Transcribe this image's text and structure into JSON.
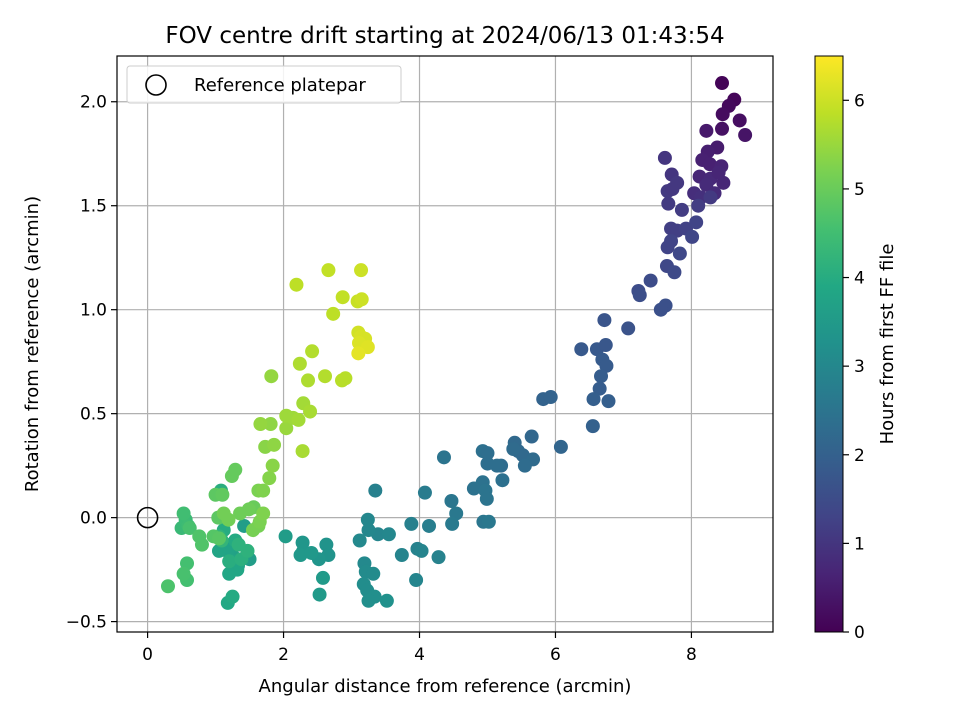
{
  "chart_data": {
    "type": "scatter",
    "title": "FOV centre drift starting at 2024/06/13 01:43:54",
    "xlabel": "Angular distance from reference (arcmin)",
    "ylabel": "Rotation from reference (arcmin)",
    "xlim": [
      -0.45,
      9.2
    ],
    "ylim": [
      -0.55,
      2.22
    ],
    "xticks": [
      0,
      2,
      4,
      6,
      8
    ],
    "xtick_labels": [
      "0",
      "2",
      "4",
      "6",
      "8"
    ],
    "yticks": [
      -0.5,
      0.0,
      0.5,
      1.0,
      1.5,
      2.0
    ],
    "ytick_labels": [
      "−0.5",
      "0.0",
      "0.5",
      "1.0",
      "1.5",
      "2.0"
    ],
    "grid": true,
    "legend": {
      "position": "top-left",
      "entries": [
        "Reference platepar"
      ]
    },
    "reference_point": {
      "x": 0,
      "y": 0,
      "label": "Reference platepar"
    },
    "colorbar": {
      "label": "Hours from first FF file",
      "colormap": "viridis",
      "range": [
        0,
        6.5
      ],
      "ticks": [
        0,
        1,
        2,
        3,
        4,
        5,
        6
      ],
      "tick_labels": [
        "0",
        "1",
        "2",
        "3",
        "4",
        "5",
        "6"
      ]
    },
    "points": [
      {
        "x": 8.45,
        "y": 2.09,
        "h": 0.05
      },
      {
        "x": 8.63,
        "y": 2.01,
        "h": 0.1
      },
      {
        "x": 8.55,
        "y": 1.98,
        "h": 0.15
      },
      {
        "x": 8.46,
        "y": 1.94,
        "h": 0.2
      },
      {
        "x": 8.71,
        "y": 1.91,
        "h": 0.25
      },
      {
        "x": 8.45,
        "y": 1.87,
        "h": 0.3
      },
      {
        "x": 8.79,
        "y": 1.84,
        "h": 0.35
      },
      {
        "x": 8.22,
        "y": 1.86,
        "h": 0.45
      },
      {
        "x": 8.38,
        "y": 1.78,
        "h": 0.5
      },
      {
        "x": 8.24,
        "y": 1.76,
        "h": 0.55
      },
      {
        "x": 8.16,
        "y": 1.72,
        "h": 0.6
      },
      {
        "x": 8.27,
        "y": 1.7,
        "h": 0.6
      },
      {
        "x": 8.44,
        "y": 1.69,
        "h": 0.65
      },
      {
        "x": 8.12,
        "y": 1.64,
        "h": 0.7
      },
      {
        "x": 8.28,
        "y": 1.63,
        "h": 0.75
      },
      {
        "x": 8.47,
        "y": 1.61,
        "h": 0.7
      },
      {
        "x": 8.22,
        "y": 1.6,
        "h": 0.8
      },
      {
        "x": 8.04,
        "y": 1.56,
        "h": 0.85
      },
      {
        "x": 8.14,
        "y": 1.54,
        "h": 0.9
      },
      {
        "x": 8.34,
        "y": 1.56,
        "h": 0.8
      },
      {
        "x": 8.4,
        "y": 1.66,
        "h": 0.7
      },
      {
        "x": 7.61,
        "y": 1.73,
        "h": 1.0
      },
      {
        "x": 7.71,
        "y": 1.65,
        "h": 1.0
      },
      {
        "x": 7.79,
        "y": 1.61,
        "h": 1.05
      },
      {
        "x": 7.65,
        "y": 1.57,
        "h": 1.1
      },
      {
        "x": 7.72,
        "y": 1.58,
        "h": 1.05
      },
      {
        "x": 7.66,
        "y": 1.51,
        "h": 1.1
      },
      {
        "x": 7.86,
        "y": 1.48,
        "h": 1.15
      },
      {
        "x": 8.1,
        "y": 1.5,
        "h": 1.15
      },
      {
        "x": 8.28,
        "y": 1.54,
        "h": 1.1
      },
      {
        "x": 7.7,
        "y": 1.39,
        "h": 1.2
      },
      {
        "x": 7.79,
        "y": 1.38,
        "h": 1.2
      },
      {
        "x": 7.92,
        "y": 1.39,
        "h": 1.25
      },
      {
        "x": 8.07,
        "y": 1.42,
        "h": 1.3
      },
      {
        "x": 7.65,
        "y": 1.3,
        "h": 1.3
      },
      {
        "x": 7.7,
        "y": 1.33,
        "h": 1.3
      },
      {
        "x": 8.01,
        "y": 1.35,
        "h": 1.35
      },
      {
        "x": 7.83,
        "y": 1.27,
        "h": 1.4
      },
      {
        "x": 7.64,
        "y": 1.21,
        "h": 1.4
      },
      {
        "x": 7.75,
        "y": 1.18,
        "h": 1.45
      },
      {
        "x": 7.4,
        "y": 1.14,
        "h": 1.5
      },
      {
        "x": 7.22,
        "y": 1.09,
        "h": 1.5
      },
      {
        "x": 7.24,
        "y": 1.07,
        "h": 1.55
      },
      {
        "x": 7.62,
        "y": 1.02,
        "h": 1.6
      },
      {
        "x": 7.55,
        "y": 1.0,
        "h": 1.6
      },
      {
        "x": 7.07,
        "y": 0.91,
        "h": 1.65
      },
      {
        "x": 6.72,
        "y": 0.95,
        "h": 1.7
      },
      {
        "x": 6.38,
        "y": 0.81,
        "h": 1.8
      },
      {
        "x": 6.61,
        "y": 0.81,
        "h": 1.8
      },
      {
        "x": 6.74,
        "y": 0.83,
        "h": 1.75
      },
      {
        "x": 6.69,
        "y": 0.76,
        "h": 1.85
      },
      {
        "x": 6.75,
        "y": 0.73,
        "h": 1.85
      },
      {
        "x": 6.67,
        "y": 0.68,
        "h": 1.9
      },
      {
        "x": 6.65,
        "y": 0.62,
        "h": 1.9
      },
      {
        "x": 6.56,
        "y": 0.57,
        "h": 1.95
      },
      {
        "x": 6.78,
        "y": 0.56,
        "h": 1.95
      },
      {
        "x": 5.82,
        "y": 0.57,
        "h": 2.05
      },
      {
        "x": 5.93,
        "y": 0.58,
        "h": 2.05
      },
      {
        "x": 6.55,
        "y": 0.44,
        "h": 2.0
      },
      {
        "x": 6.08,
        "y": 0.34,
        "h": 2.1
      },
      {
        "x": 5.65,
        "y": 0.39,
        "h": 2.15
      },
      {
        "x": 5.4,
        "y": 0.36,
        "h": 2.2
      },
      {
        "x": 5.45,
        "y": 0.32,
        "h": 2.2
      },
      {
        "x": 5.52,
        "y": 0.3,
        "h": 2.2
      },
      {
        "x": 5.38,
        "y": 0.33,
        "h": 2.25
      },
      {
        "x": 5.67,
        "y": 0.28,
        "h": 2.25
      },
      {
        "x": 5.55,
        "y": 0.25,
        "h": 2.3
      },
      {
        "x": 5.2,
        "y": 0.25,
        "h": 2.3
      },
      {
        "x": 5.14,
        "y": 0.25,
        "h": 2.35
      },
      {
        "x": 5.0,
        "y": 0.26,
        "h": 2.35
      },
      {
        "x": 4.93,
        "y": 0.32,
        "h": 2.4
      },
      {
        "x": 5.0,
        "y": 0.31,
        "h": 2.35
      },
      {
        "x": 5.22,
        "y": 0.18,
        "h": 2.4
      },
      {
        "x": 4.93,
        "y": 0.17,
        "h": 2.45
      },
      {
        "x": 4.8,
        "y": 0.14,
        "h": 2.45
      },
      {
        "x": 4.97,
        "y": 0.13,
        "h": 2.5
      },
      {
        "x": 4.36,
        "y": 0.29,
        "h": 2.5
      },
      {
        "x": 4.47,
        "y": 0.08,
        "h": 2.55
      },
      {
        "x": 4.99,
        "y": 0.09,
        "h": 2.5
      },
      {
        "x": 4.54,
        "y": 0.02,
        "h": 2.6
      },
      {
        "x": 4.94,
        "y": -0.02,
        "h": 2.55
      },
      {
        "x": 5.02,
        "y": -0.02,
        "h": 2.6
      },
      {
        "x": 4.48,
        "y": -0.03,
        "h": 2.65
      },
      {
        "x": 4.08,
        "y": 0.12,
        "h": 2.7
      },
      {
        "x": 3.35,
        "y": 0.13,
        "h": 2.8
      },
      {
        "x": 4.14,
        "y": -0.04,
        "h": 2.75
      },
      {
        "x": 3.88,
        "y": -0.03,
        "h": 2.8
      },
      {
        "x": 4.28,
        "y": -0.19,
        "h": 2.85
      },
      {
        "x": 3.97,
        "y": -0.15,
        "h": 2.85
      },
      {
        "x": 4.03,
        "y": -0.16,
        "h": 2.9
      },
      {
        "x": 3.74,
        "y": -0.18,
        "h": 2.9
      },
      {
        "x": 3.95,
        "y": -0.3,
        "h": 2.95
      },
      {
        "x": 3.39,
        "y": -0.08,
        "h": 2.95
      },
      {
        "x": 3.24,
        "y": -0.01,
        "h": 3.0
      },
      {
        "x": 3.25,
        "y": -0.06,
        "h": 3.0
      },
      {
        "x": 3.55,
        "y": -0.08,
        "h": 3.0
      },
      {
        "x": 3.12,
        "y": -0.11,
        "h": 3.05
      },
      {
        "x": 3.19,
        "y": -0.22,
        "h": 3.05
      },
      {
        "x": 3.21,
        "y": -0.26,
        "h": 3.1
      },
      {
        "x": 3.32,
        "y": -0.27,
        "h": 3.1
      },
      {
        "x": 3.18,
        "y": -0.32,
        "h": 3.15
      },
      {
        "x": 3.23,
        "y": -0.35,
        "h": 3.15
      },
      {
        "x": 3.34,
        "y": -0.38,
        "h": 3.2
      },
      {
        "x": 3.25,
        "y": -0.4,
        "h": 3.2
      },
      {
        "x": 3.52,
        "y": -0.4,
        "h": 3.25
      },
      {
        "x": 2.63,
        "y": -0.13,
        "h": 3.3
      },
      {
        "x": 2.66,
        "y": -0.18,
        "h": 3.3
      },
      {
        "x": 2.52,
        "y": -0.2,
        "h": 3.35
      },
      {
        "x": 2.28,
        "y": -0.12,
        "h": 3.4
      },
      {
        "x": 2.29,
        "y": -0.16,
        "h": 3.4
      },
      {
        "x": 2.25,
        "y": -0.18,
        "h": 3.45
      },
      {
        "x": 2.41,
        "y": -0.17,
        "h": 3.45
      },
      {
        "x": 2.58,
        "y": -0.29,
        "h": 3.5
      },
      {
        "x": 2.53,
        "y": -0.37,
        "h": 3.5
      },
      {
        "x": 2.03,
        "y": -0.09,
        "h": 3.55
      },
      {
        "x": 1.42,
        "y": -0.04,
        "h": 3.6
      },
      {
        "x": 1.5,
        "y": -0.2,
        "h": 3.6
      },
      {
        "x": 1.33,
        "y": -0.23,
        "h": 3.65
      },
      {
        "x": 1.23,
        "y": -0.13,
        "h": 3.7
      },
      {
        "x": 1.27,
        "y": -0.19,
        "h": 3.7
      },
      {
        "x": 1.17,
        "y": -0.16,
        "h": 3.75
      },
      {
        "x": 1.05,
        "y": -0.16,
        "h": 3.8
      },
      {
        "x": 1.24,
        "y": -0.21,
        "h": 3.8
      },
      {
        "x": 1.32,
        "y": -0.25,
        "h": 3.85
      },
      {
        "x": 1.2,
        "y": -0.27,
        "h": 3.85
      },
      {
        "x": 1.18,
        "y": -0.41,
        "h": 3.9
      },
      {
        "x": 1.25,
        "y": -0.38,
        "h": 3.95
      },
      {
        "x": 1.29,
        "y": -0.11,
        "h": 3.95
      },
      {
        "x": 1.12,
        "y": -0.06,
        "h": 4.0
      },
      {
        "x": 1.08,
        "y": 0.13,
        "h": 4.05
      },
      {
        "x": 1.2,
        "y": -0.21,
        "h": 4.05
      },
      {
        "x": 1.38,
        "y": -0.2,
        "h": 4.1
      },
      {
        "x": 1.47,
        "y": -0.16,
        "h": 4.15
      },
      {
        "x": 1.34,
        "y": -0.13,
        "h": 4.15
      },
      {
        "x": 1.05,
        "y": -0.09,
        "h": 4.2
      },
      {
        "x": 1.09,
        "y": -0.11,
        "h": 4.25
      },
      {
        "x": 0.55,
        "y": -0.04,
        "h": 4.3
      },
      {
        "x": 0.5,
        "y": -0.05,
        "h": 4.35
      },
      {
        "x": 0.56,
        "y": -0.01,
        "h": 4.4
      },
      {
        "x": 0.6,
        "y": -0.04,
        "h": 4.45
      },
      {
        "x": 0.53,
        "y": 0.02,
        "h": 4.5
      },
      {
        "x": 0.58,
        "y": -0.22,
        "h": 4.55
      },
      {
        "x": 0.58,
        "y": -0.3,
        "h": 4.55
      },
      {
        "x": 0.53,
        "y": -0.27,
        "h": 4.6
      },
      {
        "x": 0.3,
        "y": -0.33,
        "h": 4.65
      },
      {
        "x": 0.62,
        "y": -0.05,
        "h": 4.6
      },
      {
        "x": 0.76,
        "y": -0.09,
        "h": 4.7
      },
      {
        "x": 0.8,
        "y": -0.13,
        "h": 4.7
      },
      {
        "x": 0.97,
        "y": -0.09,
        "h": 4.75
      },
      {
        "x": 1.05,
        "y": -0.1,
        "h": 4.8
      },
      {
        "x": 1.04,
        "y": 0.0,
        "h": 4.85
      },
      {
        "x": 1.0,
        "y": 0.11,
        "h": 4.85
      },
      {
        "x": 1.1,
        "y": 0.11,
        "h": 4.9
      },
      {
        "x": 1.24,
        "y": 0.2,
        "h": 4.95
      },
      {
        "x": 1.29,
        "y": 0.23,
        "h": 4.95
      },
      {
        "x": 1.56,
        "y": 0.05,
        "h": 5.0
      },
      {
        "x": 1.49,
        "y": 0.04,
        "h": 5.05
      },
      {
        "x": 1.36,
        "y": 0.02,
        "h": 5.05
      },
      {
        "x": 1.12,
        "y": 0.02,
        "h": 5.1
      },
      {
        "x": 1.19,
        "y": -0.01,
        "h": 5.1
      },
      {
        "x": 1.55,
        "y": -0.06,
        "h": 5.15
      },
      {
        "x": 1.63,
        "y": -0.04,
        "h": 5.15
      },
      {
        "x": 1.65,
        "y": -0.02,
        "h": 5.2
      },
      {
        "x": 1.63,
        "y": 0.13,
        "h": 5.2
      },
      {
        "x": 1.7,
        "y": 0.13,
        "h": 5.25
      },
      {
        "x": 1.7,
        "y": 0.02,
        "h": 5.25
      },
      {
        "x": 1.79,
        "y": 0.19,
        "h": 5.3
      },
      {
        "x": 1.84,
        "y": 0.25,
        "h": 5.35
      },
      {
        "x": 1.73,
        "y": 0.34,
        "h": 5.35
      },
      {
        "x": 1.86,
        "y": 0.35,
        "h": 5.4
      },
      {
        "x": 1.81,
        "y": 0.45,
        "h": 5.4
      },
      {
        "x": 1.66,
        "y": 0.45,
        "h": 5.45
      },
      {
        "x": 1.82,
        "y": 0.68,
        "h": 5.45
      },
      {
        "x": 2.04,
        "y": 0.43,
        "h": 5.5
      },
      {
        "x": 2.04,
        "y": 0.49,
        "h": 5.55
      },
      {
        "x": 2.14,
        "y": 0.48,
        "h": 5.55
      },
      {
        "x": 2.22,
        "y": 0.47,
        "h": 5.6
      },
      {
        "x": 2.29,
        "y": 0.55,
        "h": 5.6
      },
      {
        "x": 2.39,
        "y": 0.51,
        "h": 5.65
      },
      {
        "x": 2.28,
        "y": 0.32,
        "h": 5.65
      },
      {
        "x": 2.24,
        "y": 0.74,
        "h": 5.7
      },
      {
        "x": 2.36,
        "y": 0.66,
        "h": 5.7
      },
      {
        "x": 2.42,
        "y": 0.8,
        "h": 5.75
      },
      {
        "x": 2.61,
        "y": 0.68,
        "h": 5.75
      },
      {
        "x": 2.86,
        "y": 0.66,
        "h": 5.8
      },
      {
        "x": 2.91,
        "y": 0.67,
        "h": 5.8
      },
      {
        "x": 2.19,
        "y": 1.12,
        "h": 5.85
      },
      {
        "x": 2.73,
        "y": 0.98,
        "h": 5.85
      },
      {
        "x": 2.66,
        "y": 1.19,
        "h": 5.9
      },
      {
        "x": 2.87,
        "y": 1.06,
        "h": 5.9
      },
      {
        "x": 3.09,
        "y": 1.04,
        "h": 5.95
      },
      {
        "x": 3.15,
        "y": 1.05,
        "h": 6.0
      },
      {
        "x": 3.14,
        "y": 1.19,
        "h": 6.0
      },
      {
        "x": 3.1,
        "y": 0.89,
        "h": 6.05
      },
      {
        "x": 3.14,
        "y": 0.87,
        "h": 6.1
      },
      {
        "x": 3.2,
        "y": 0.86,
        "h": 6.1
      },
      {
        "x": 3.11,
        "y": 0.84,
        "h": 6.15
      },
      {
        "x": 3.24,
        "y": 0.82,
        "h": 6.2
      },
      {
        "x": 3.1,
        "y": 0.79,
        "h": 6.25
      }
    ]
  }
}
